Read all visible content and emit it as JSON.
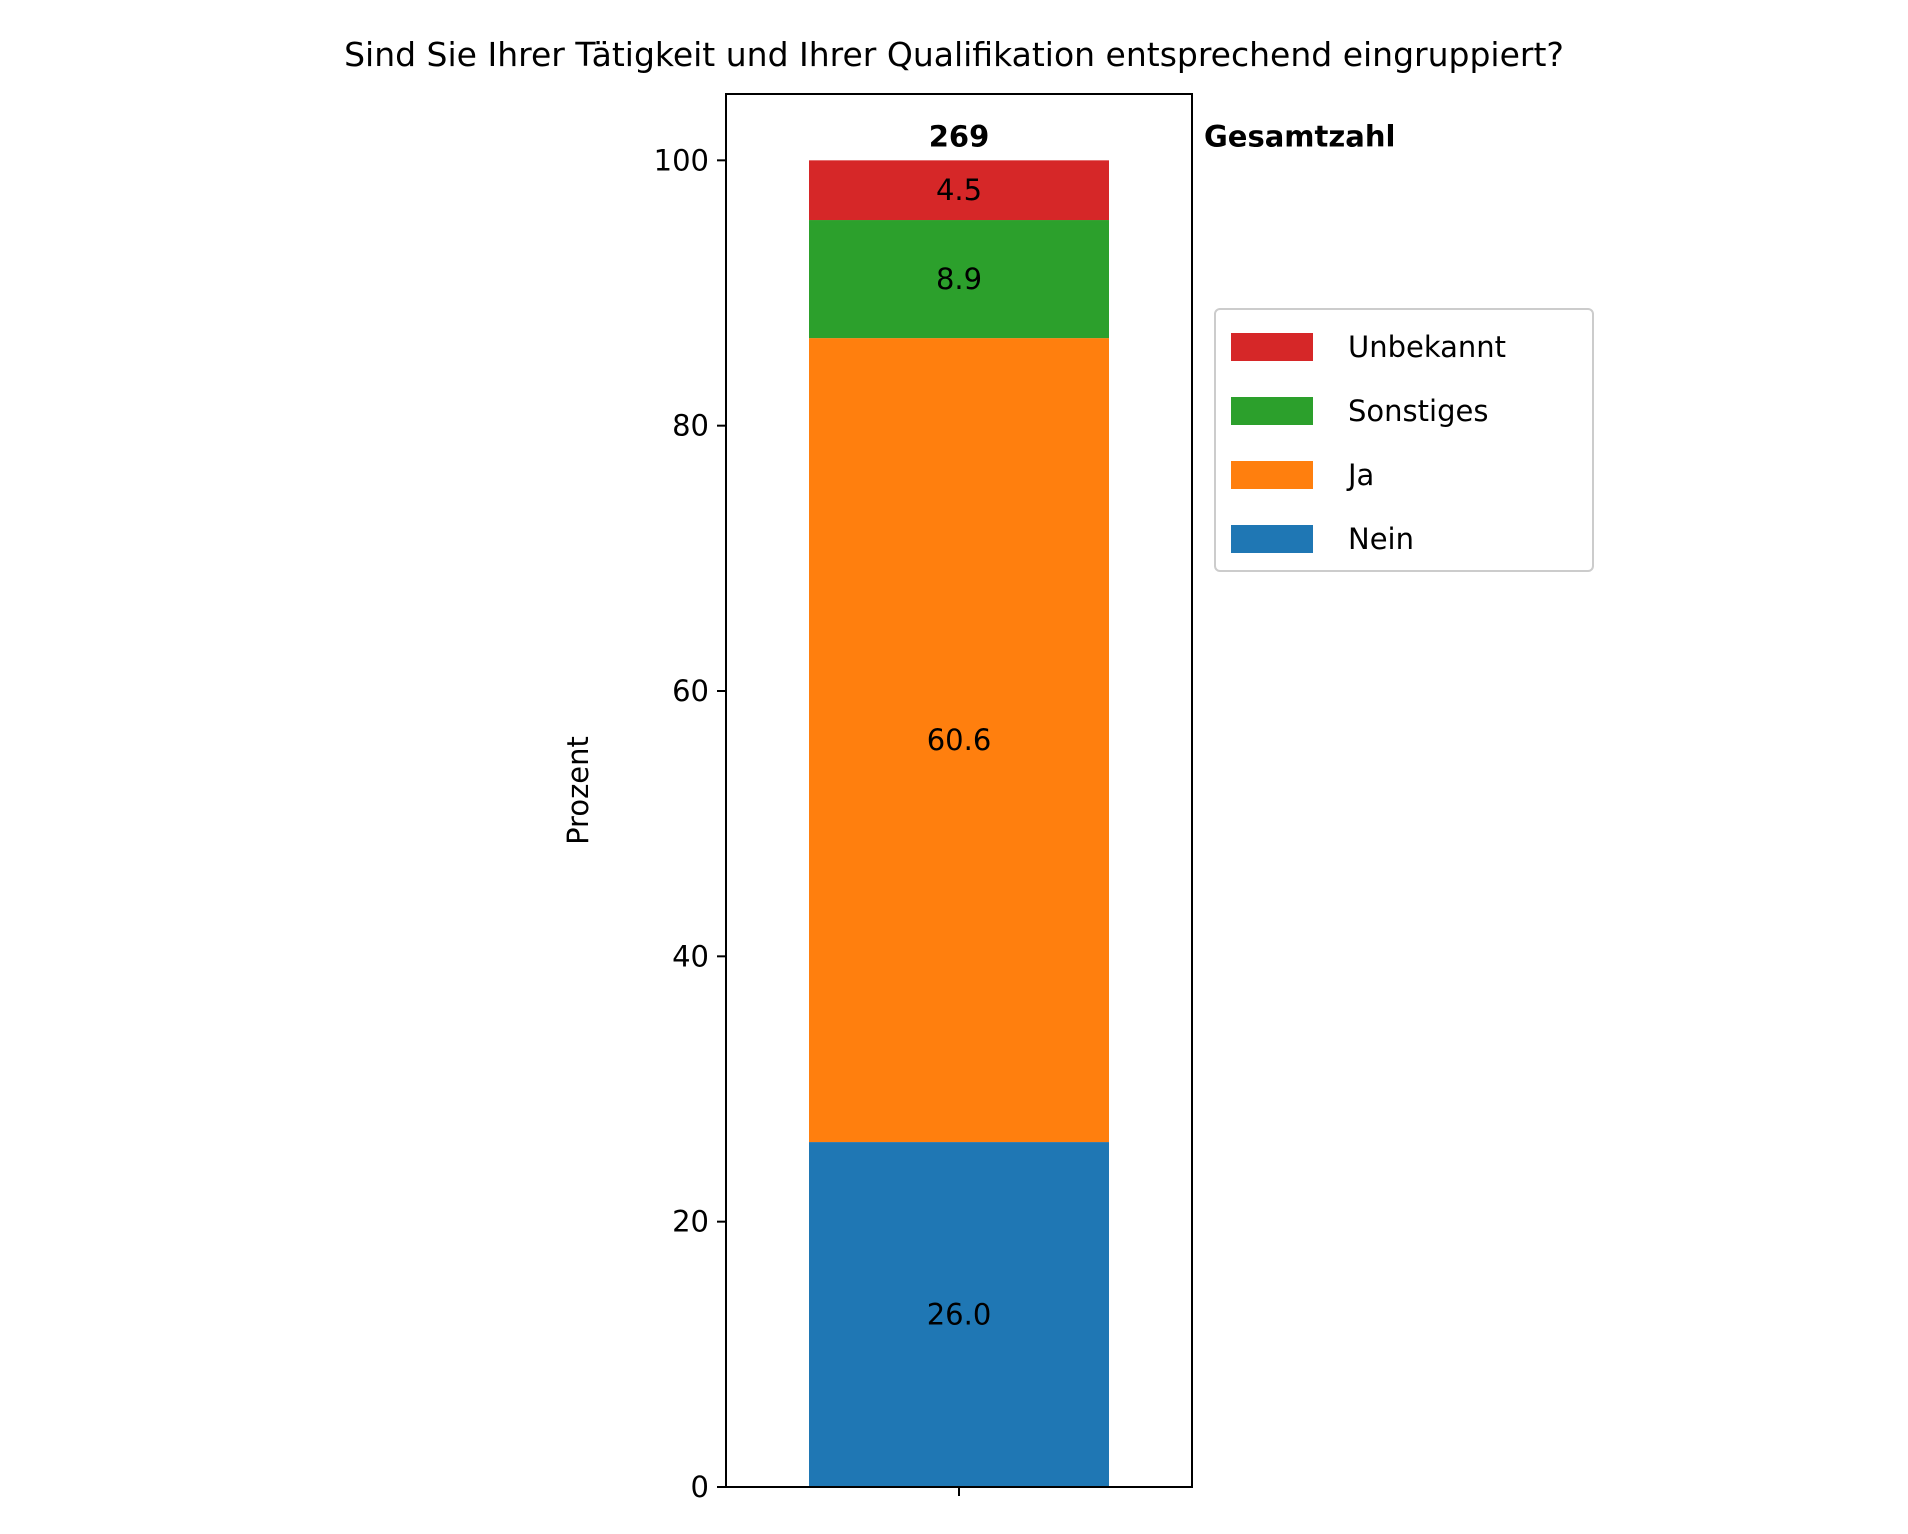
{
  "chart_data": {
    "type": "bar",
    "stacked": true,
    "title": "Sind Sie Ihrer Tätigkeit und Ihrer Qualifikation entsprechend eingruppiert?",
    "xlabel": "",
    "ylabel": "Prozent",
    "ylim": [
      0,
      105
    ],
    "yticks": [
      0,
      20,
      40,
      60,
      80,
      100
    ],
    "categories": [
      ""
    ],
    "total": "269",
    "total_label": "Gesamtzahl",
    "grid": false,
    "legend_position": "right, outside plot",
    "series": [
      {
        "name": "Nein",
        "values": [
          26.0
        ],
        "label": "26.0",
        "color": "#1f77b4"
      },
      {
        "name": "Ja",
        "values": [
          60.6
        ],
        "label": "60.6",
        "color": "#ff7f0e"
      },
      {
        "name": "Sonstiges",
        "values": [
          8.9
        ],
        "label": "8.9",
        "color": "#2ca02c"
      },
      {
        "name": "Unbekannt",
        "values": [
          4.5
        ],
        "label": "4.5",
        "color": "#d62728"
      }
    ],
    "legend_order": [
      "Unbekannt",
      "Sonstiges",
      "Ja",
      "Nein"
    ]
  }
}
